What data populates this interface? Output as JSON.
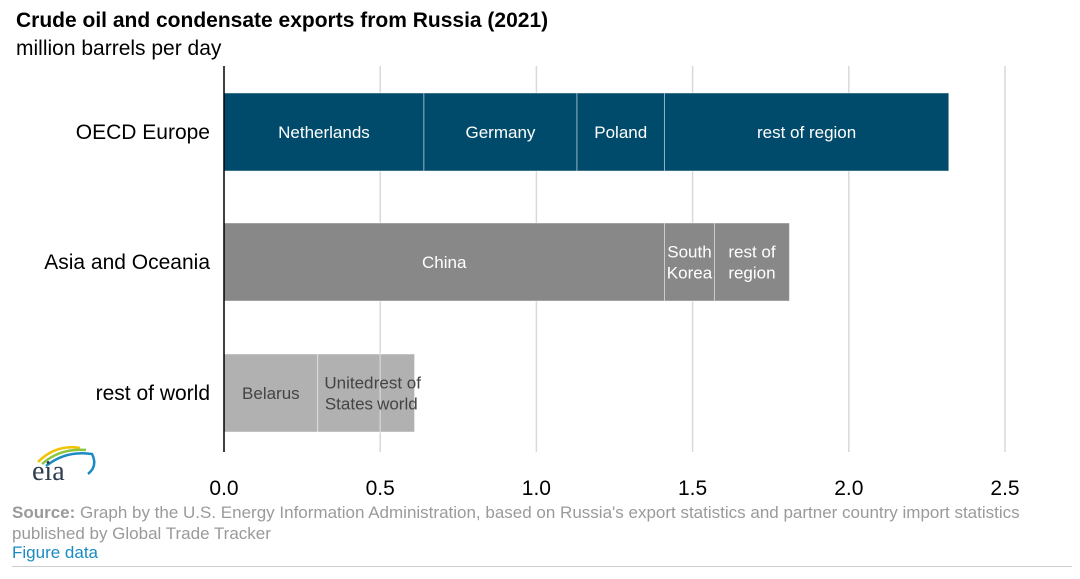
{
  "chart_data": {
    "type": "bar",
    "orientation": "horizontal",
    "stacked": true,
    "title": "Crude oil and condensate exports from Russia (2021)",
    "subtitle": "million barrels per day",
    "xlim": [
      0,
      2.5
    ],
    "xticks": [
      "0.0",
      "0.5",
      "1.0",
      "1.5",
      "2.0",
      "2.5"
    ],
    "grid": "vertical",
    "categories": [
      {
        "name": "OECD Europe",
        "color": "#004b6b",
        "text_color": "#ffffff",
        "segments": [
          {
            "label": "Netherlands",
            "value": 0.64
          },
          {
            "label": "Germany",
            "value": 0.49
          },
          {
            "label": "Poland",
            "value": 0.28
          },
          {
            "label": "rest of region",
            "value": 0.91
          }
        ]
      },
      {
        "name": "Asia and Oceania",
        "color": "#888888",
        "text_color": "#ffffff",
        "segments": [
          {
            "label": "China",
            "value": 1.41
          },
          {
            "label": "South\nKorea",
            "value": 0.16
          },
          {
            "label": "rest of\nregion",
            "value": 0.24
          }
        ]
      },
      {
        "name": "rest of world",
        "color": "#b0b1b0",
        "text_color": "#444444",
        "segments": [
          {
            "label": "Belarus",
            "value": 0.3
          },
          {
            "label": "United\nStates",
            "value": 0.2
          },
          {
            "label": "rest of\nworld",
            "value": 0.11
          }
        ]
      }
    ]
  },
  "footer": {
    "source_label": "Source:",
    "source_text": " Graph by the U.S. Energy Information Administration, based on Russia's export statistics and partner country import statistics published by Global Trade Tracker",
    "figure_data_link": "Figure data"
  },
  "logo": {
    "text": "eia"
  }
}
